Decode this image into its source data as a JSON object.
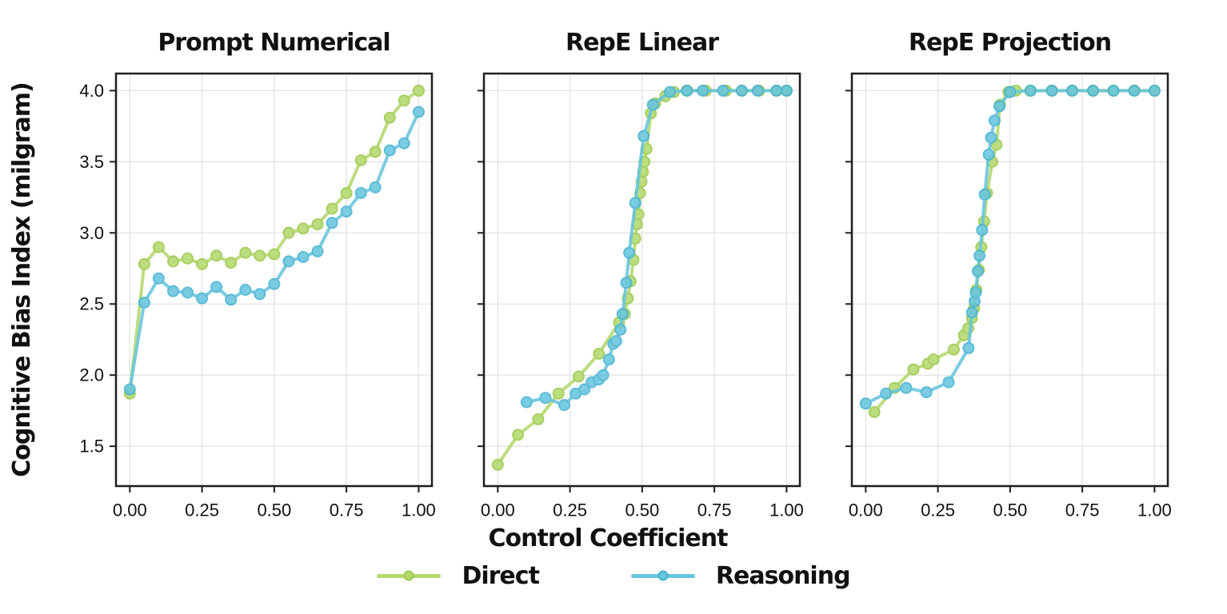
{
  "figure": {
    "ylabel": "Cognitive Bias Index (milgram)",
    "xlabel": "Control Coefficient",
    "background": "#ffffff",
    "frame_color": "#1d1d1d",
    "grid_color": "#e3e3e3"
  },
  "legend": {
    "items": [
      {
        "label": "Direct",
        "color": "#b3d96d",
        "edge": "#9cc94e"
      },
      {
        "label": "Reasoning",
        "color": "#67c5df",
        "edge": "#46b2d3"
      }
    ]
  },
  "chart_data": [
    {
      "type": "line",
      "title": "Prompt Numerical",
      "xlim": [
        -0.048,
        1.046
      ],
      "ylim": [
        1.22,
        4.12
      ],
      "x_ticks": {
        "values": [
          0,
          0.25,
          0.5,
          0.75,
          1.0
        ],
        "labels": [
          "0.00",
          "0.25",
          "0.50",
          "0.75",
          "1.00"
        ]
      },
      "y_ticks": {
        "values": [
          1.5,
          2.0,
          2.5,
          3.0,
          3.5,
          4.0
        ],
        "labels": [
          "1.5",
          "2.0",
          "2.5",
          "3.0",
          "3.5",
          "4.0"
        ]
      },
      "show_y_tick_labels": true,
      "grid": true,
      "series": [
        {
          "name": "Direct",
          "color": "#b3d96d",
          "edge": "#9cc94e",
          "points": [
            [
              0.0,
              1.87
            ],
            [
              0.05,
              2.78
            ],
            [
              0.1,
              2.9
            ],
            [
              0.15,
              2.8
            ],
            [
              0.2,
              2.82
            ],
            [
              0.25,
              2.78
            ],
            [
              0.3,
              2.84
            ],
            [
              0.35,
              2.79
            ],
            [
              0.4,
              2.86
            ],
            [
              0.45,
              2.84
            ],
            [
              0.5,
              2.85
            ],
            [
              0.55,
              3.0
            ],
            [
              0.6,
              3.03
            ],
            [
              0.65,
              3.06
            ],
            [
              0.7,
              3.17
            ],
            [
              0.75,
              3.28
            ],
            [
              0.8,
              3.51
            ],
            [
              0.85,
              3.57
            ],
            [
              0.9,
              3.81
            ],
            [
              0.95,
              3.93
            ],
            [
              1.0,
              4.0
            ]
          ]
        },
        {
          "name": "Reasoning",
          "color": "#67c5df",
          "edge": "#46b2d3",
          "points": [
            [
              0.0,
              1.9
            ],
            [
              0.05,
              2.51
            ],
            [
              0.1,
              2.68
            ],
            [
              0.15,
              2.59
            ],
            [
              0.2,
              2.58
            ],
            [
              0.25,
              2.54
            ],
            [
              0.3,
              2.62
            ],
            [
              0.35,
              2.53
            ],
            [
              0.4,
              2.6
            ],
            [
              0.45,
              2.57
            ],
            [
              0.5,
              2.64
            ],
            [
              0.55,
              2.8
            ],
            [
              0.6,
              2.83
            ],
            [
              0.65,
              2.87
            ],
            [
              0.7,
              3.07
            ],
            [
              0.75,
              3.15
            ],
            [
              0.8,
              3.28
            ],
            [
              0.85,
              3.32
            ],
            [
              0.9,
              3.58
            ],
            [
              0.95,
              3.63
            ],
            [
              1.0,
              3.85
            ]
          ]
        }
      ]
    },
    {
      "type": "line",
      "title": "RepE Linear",
      "xlim": [
        -0.048,
        1.046
      ],
      "ylim": [
        1.22,
        4.12
      ],
      "x_ticks": {
        "values": [
          0,
          0.25,
          0.5,
          0.75,
          1.0
        ],
        "labels": [
          "0.00",
          "0.25",
          "0.50",
          "0.75",
          "1.00"
        ]
      },
      "y_ticks": {
        "values": [
          1.5,
          2.0,
          2.5,
          3.0,
          3.5,
          4.0
        ],
        "labels": [
          "1.5",
          "2.0",
          "2.5",
          "3.0",
          "3.5",
          "4.0"
        ]
      },
      "show_y_tick_labels": false,
      "grid": true,
      "series": [
        {
          "name": "Direct",
          "color": "#b3d96d",
          "edge": "#9cc94e",
          "points": [
            [
              0.0,
              1.37
            ],
            [
              0.07,
              1.58
            ],
            [
              0.14,
              1.69
            ],
            [
              0.21,
              1.87
            ],
            [
              0.28,
              1.99
            ],
            [
              0.35,
              2.15
            ],
            [
              0.42,
              2.37
            ],
            [
              0.44,
              2.43
            ],
            [
              0.45,
              2.54
            ],
            [
              0.46,
              2.66
            ],
            [
              0.47,
              2.81
            ],
            [
              0.476,
              2.96
            ],
            [
              0.482,
              3.06
            ],
            [
              0.487,
              3.13
            ],
            [
              0.493,
              3.28
            ],
            [
              0.498,
              3.36
            ],
            [
              0.503,
              3.43
            ],
            [
              0.508,
              3.5
            ],
            [
              0.515,
              3.59
            ],
            [
              0.53,
              3.84
            ],
            [
              0.545,
              3.91
            ],
            [
              0.58,
              3.96
            ],
            [
              0.61,
              3.99
            ],
            [
              0.655,
              4.0
            ],
            [
              0.72,
              4.0
            ],
            [
              0.79,
              4.0
            ],
            [
              0.845,
              4.0
            ],
            [
              0.905,
              4.0
            ],
            [
              0.965,
              4.0
            ],
            [
              1.0,
              4.0
            ]
          ]
        },
        {
          "name": "Reasoning",
          "color": "#67c5df",
          "edge": "#46b2d3",
          "points": [
            [
              0.1,
              1.81
            ],
            [
              0.165,
              1.84
            ],
            [
              0.23,
              1.79
            ],
            [
              0.27,
              1.87
            ],
            [
              0.3,
              1.9
            ],
            [
              0.325,
              1.95
            ],
            [
              0.35,
              1.97
            ],
            [
              0.365,
              2.0
            ],
            [
              0.385,
              2.11
            ],
            [
              0.4,
              2.22
            ],
            [
              0.41,
              2.24
            ],
            [
              0.425,
              2.32
            ],
            [
              0.432,
              2.43
            ],
            [
              0.445,
              2.65
            ],
            [
              0.455,
              2.86
            ],
            [
              0.476,
              3.21
            ],
            [
              0.505,
              3.68
            ],
            [
              0.537,
              3.9
            ],
            [
              0.596,
              3.99
            ],
            [
              0.655,
              4.0
            ],
            [
              0.71,
              4.0
            ],
            [
              0.78,
              4.0
            ],
            [
              0.845,
              4.0
            ],
            [
              0.9,
              4.0
            ],
            [
              0.965,
              4.0
            ],
            [
              1.0,
              4.0
            ]
          ]
        }
      ]
    },
    {
      "type": "line",
      "title": "RepE Projection",
      "xlim": [
        -0.048,
        1.046
      ],
      "ylim": [
        1.22,
        4.12
      ],
      "x_ticks": {
        "values": [
          0,
          0.25,
          0.5,
          0.75,
          1.0
        ],
        "labels": [
          "0.00",
          "0.25",
          "0.50",
          "0.75",
          "1.00"
        ]
      },
      "y_ticks": {
        "values": [
          1.5,
          2.0,
          2.5,
          3.0,
          3.5,
          4.0
        ],
        "labels": [
          "1.5",
          "2.0",
          "2.5",
          "3.0",
          "3.5",
          "4.0"
        ]
      },
      "show_y_tick_labels": false,
      "grid": true,
      "series": [
        {
          "name": "Direct",
          "color": "#b3d96d",
          "edge": "#9cc94e",
          "points": [
            [
              0.03,
              1.74
            ],
            [
              0.1,
              1.91
            ],
            [
              0.165,
              2.04
            ],
            [
              0.215,
              2.08
            ],
            [
              0.235,
              2.11
            ],
            [
              0.305,
              2.18
            ],
            [
              0.34,
              2.28
            ],
            [
              0.355,
              2.33
            ],
            [
              0.368,
              2.4
            ],
            [
              0.375,
              2.47
            ],
            [
              0.383,
              2.6
            ],
            [
              0.392,
              2.74
            ],
            [
              0.4,
              2.9
            ],
            [
              0.41,
              3.08
            ],
            [
              0.42,
              3.28
            ],
            [
              0.438,
              3.5
            ],
            [
              0.453,
              3.62
            ],
            [
              0.465,
              3.9
            ],
            [
              0.494,
              3.99
            ],
            [
              0.52,
              4.0
            ],
            [
              0.57,
              4.0
            ],
            [
              0.645,
              4.0
            ],
            [
              0.715,
              4.0
            ],
            [
              0.787,
              4.0
            ],
            [
              0.858,
              4.0
            ],
            [
              0.93,
              4.0
            ],
            [
              1.0,
              4.0
            ]
          ]
        },
        {
          "name": "Reasoning",
          "color": "#67c5df",
          "edge": "#46b2d3",
          "points": [
            [
              0.0,
              1.8
            ],
            [
              0.07,
              1.87
            ],
            [
              0.14,
              1.91
            ],
            [
              0.21,
              1.88
            ],
            [
              0.287,
              1.95
            ],
            [
              0.356,
              2.19
            ],
            [
              0.368,
              2.44
            ],
            [
              0.377,
              2.52
            ],
            [
              0.381,
              2.58
            ],
            [
              0.388,
              2.73
            ],
            [
              0.394,
              2.84
            ],
            [
              0.403,
              3.02
            ],
            [
              0.412,
              3.27
            ],
            [
              0.426,
              3.55
            ],
            [
              0.434,
              3.67
            ],
            [
              0.446,
              3.79
            ],
            [
              0.463,
              3.89
            ],
            [
              0.5,
              3.99
            ],
            [
              0.571,
              4.0
            ],
            [
              0.644,
              4.0
            ],
            [
              0.715,
              4.0
            ],
            [
              0.787,
              4.0
            ],
            [
              0.858,
              4.0
            ],
            [
              0.93,
              4.0
            ],
            [
              1.0,
              4.0
            ]
          ]
        }
      ]
    }
  ]
}
